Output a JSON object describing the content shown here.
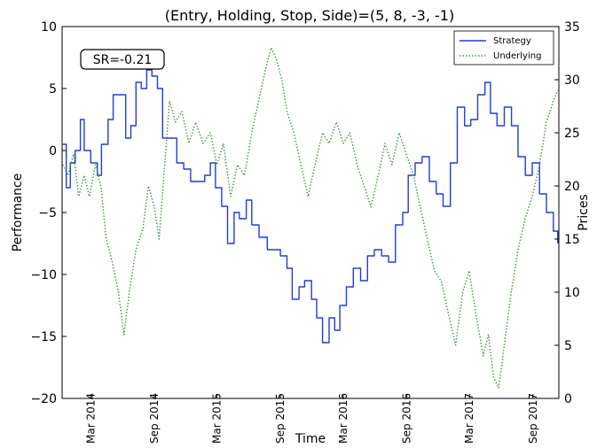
{
  "chart_data": {
    "type": "line",
    "title": "(Entry, Holding, Stop, Side)=(5, 8, -3, -1)",
    "xlabel": "Time",
    "ylabel": "Performance",
    "ylabel_right": "Prices",
    "ylim": [
      -20,
      10
    ],
    "ylim_right": [
      0,
      35
    ],
    "yticks": [
      -20,
      -15,
      -10,
      -5,
      0,
      5,
      10
    ],
    "yticks_right": [
      0,
      5,
      10,
      15,
      20,
      25,
      30,
      35
    ],
    "xlim": [
      "2013-12-08",
      "2017-11-15"
    ],
    "xticks": [
      {
        "date": "2014-03-01",
        "label": "Mar 2014"
      },
      {
        "date": "2014-09-01",
        "label": "Sep 2014"
      },
      {
        "date": "2015-03-01",
        "label": "Mar 2015"
      },
      {
        "date": "2015-09-01",
        "label": "Sep 2015"
      },
      {
        "date": "2016-03-01",
        "label": "Mar 2016"
      },
      {
        "date": "2016-09-01",
        "label": "Sep 2016"
      },
      {
        "date": "2017-03-01",
        "label": "Mar 2017"
      },
      {
        "date": "2017-09-01",
        "label": "Sep 2017"
      }
    ],
    "legend_position": "top-right",
    "annotation": "SR=-0.21",
    "series": [
      {
        "name": "Strategy",
        "axis": "left",
        "style": "solid",
        "color": "#1f3fd6",
        "points": [
          [
            "2013-12-10",
            0.5
          ],
          [
            "2013-12-20",
            -3.0
          ],
          [
            "2014-01-01",
            -1.0
          ],
          [
            "2014-01-15",
            0.0
          ],
          [
            "2014-01-30",
            2.5
          ],
          [
            "2014-02-10",
            0.0
          ],
          [
            "2014-03-01",
            -1.0
          ],
          [
            "2014-03-20",
            -2.0
          ],
          [
            "2014-04-01",
            0.5
          ],
          [
            "2014-04-20",
            2.5
          ],
          [
            "2014-05-05",
            4.5
          ],
          [
            "2014-05-25",
            4.5
          ],
          [
            "2014-06-10",
            1.0
          ],
          [
            "2014-06-25",
            2.0
          ],
          [
            "2014-07-10",
            5.5
          ],
          [
            "2014-07-25",
            5.0
          ],
          [
            "2014-08-10",
            6.5
          ],
          [
            "2014-08-25",
            6.0
          ],
          [
            "2014-09-10",
            5.0
          ],
          [
            "2014-09-25",
            1.0
          ],
          [
            "2014-10-15",
            1.0
          ],
          [
            "2014-11-05",
            -1.0
          ],
          [
            "2014-11-25",
            -1.5
          ],
          [
            "2014-12-15",
            -2.5
          ],
          [
            "2015-01-05",
            -2.5
          ],
          [
            "2015-01-25",
            -2.0
          ],
          [
            "2015-02-10",
            -1.0
          ],
          [
            "2015-02-25",
            -3.0
          ],
          [
            "2015-03-15",
            -4.5
          ],
          [
            "2015-04-01",
            -7.5
          ],
          [
            "2015-04-20",
            -5.0
          ],
          [
            "2015-05-05",
            -5.5
          ],
          [
            "2015-05-25",
            -4.0
          ],
          [
            "2015-06-10",
            -6.0
          ],
          [
            "2015-07-01",
            -7.0
          ],
          [
            "2015-07-25",
            -8.0
          ],
          [
            "2015-08-15",
            -8.0
          ],
          [
            "2015-09-01",
            -8.5
          ],
          [
            "2015-09-20",
            -9.5
          ],
          [
            "2015-10-05",
            -12.0
          ],
          [
            "2015-10-25",
            -11.0
          ],
          [
            "2015-11-10",
            -10.5
          ],
          [
            "2015-11-30",
            -12.0
          ],
          [
            "2015-12-15",
            -13.5
          ],
          [
            "2016-01-01",
            -15.5
          ],
          [
            "2016-01-20",
            -13.5
          ],
          [
            "2016-02-05",
            -14.5
          ],
          [
            "2016-02-20",
            -12.5
          ],
          [
            "2016-03-10",
            -11.0
          ],
          [
            "2016-03-30",
            -9.5
          ],
          [
            "2016-04-20",
            -10.5
          ],
          [
            "2016-05-10",
            -8.5
          ],
          [
            "2016-05-30",
            -8.0
          ],
          [
            "2016-06-20",
            -8.5
          ],
          [
            "2016-07-10",
            -9.0
          ],
          [
            "2016-07-30",
            -6.0
          ],
          [
            "2016-08-20",
            -5.0
          ],
          [
            "2016-09-05",
            -2.0
          ],
          [
            "2016-09-25",
            -1.0
          ],
          [
            "2016-10-15",
            -0.5
          ],
          [
            "2016-11-05",
            -2.5
          ],
          [
            "2016-11-25",
            -3.5
          ],
          [
            "2016-12-15",
            -4.5
          ],
          [
            "2017-01-05",
            -1.0
          ],
          [
            "2017-01-25",
            3.5
          ],
          [
            "2017-02-15",
            2.0
          ],
          [
            "2017-03-05",
            2.5
          ],
          [
            "2017-03-25",
            4.5
          ],
          [
            "2017-04-15",
            5.5
          ],
          [
            "2017-05-01",
            3.0
          ],
          [
            "2017-05-20",
            2.0
          ],
          [
            "2017-06-10",
            3.5
          ],
          [
            "2017-07-01",
            2.0
          ],
          [
            "2017-07-20",
            -0.5
          ],
          [
            "2017-08-10",
            -2.0
          ],
          [
            "2017-08-30",
            -1.0
          ],
          [
            "2017-09-20",
            -3.5
          ],
          [
            "2017-10-10",
            -5.0
          ],
          [
            "2017-10-30",
            -6.5
          ],
          [
            "2017-11-12",
            -7.5
          ]
        ]
      },
      {
        "name": "Underlying",
        "axis": "right",
        "style": "dotted",
        "color": "#3a9a3a",
        "points": [
          [
            "2013-12-10",
            22
          ],
          [
            "2013-12-25",
            21
          ],
          [
            "2014-01-10",
            23
          ],
          [
            "2014-01-25",
            19
          ],
          [
            "2014-02-10",
            21
          ],
          [
            "2014-02-25",
            19
          ],
          [
            "2014-03-15",
            22
          ],
          [
            "2014-03-30",
            20
          ],
          [
            "2014-04-15",
            15
          ],
          [
            "2014-05-01",
            13
          ],
          [
            "2014-05-20",
            10
          ],
          [
            "2014-06-05",
            6
          ],
          [
            "2014-06-25",
            11
          ],
          [
            "2014-07-10",
            14
          ],
          [
            "2014-07-30",
            16
          ],
          [
            "2014-08-15",
            20
          ],
          [
            "2014-09-01",
            18
          ],
          [
            "2014-09-15",
            15
          ],
          [
            "2014-10-01",
            22
          ],
          [
            "2014-10-15",
            28
          ],
          [
            "2014-11-01",
            26
          ],
          [
            "2014-11-20",
            27
          ],
          [
            "2014-12-10",
            24
          ],
          [
            "2014-12-30",
            26
          ],
          [
            "2015-01-20",
            24
          ],
          [
            "2015-02-10",
            25
          ],
          [
            "2015-03-01",
            22
          ],
          [
            "2015-03-20",
            24
          ],
          [
            "2015-04-10",
            19
          ],
          [
            "2015-04-30",
            22
          ],
          [
            "2015-05-20",
            21
          ],
          [
            "2015-06-10",
            25
          ],
          [
            "2015-06-30",
            28
          ],
          [
            "2015-07-20",
            31
          ],
          [
            "2015-08-05",
            33
          ],
          [
            "2015-08-20",
            32
          ],
          [
            "2015-09-05",
            30
          ],
          [
            "2015-09-20",
            27
          ],
          [
            "2015-10-10",
            25
          ],
          [
            "2015-10-30",
            22
          ],
          [
            "2015-11-20",
            19
          ],
          [
            "2015-12-10",
            22
          ],
          [
            "2016-01-01",
            25
          ],
          [
            "2016-01-20",
            24
          ],
          [
            "2016-02-10",
            26
          ],
          [
            "2016-03-01",
            24
          ],
          [
            "2016-03-20",
            25
          ],
          [
            "2016-04-10",
            22
          ],
          [
            "2016-04-30",
            20
          ],
          [
            "2016-05-20",
            18
          ],
          [
            "2016-06-10",
            21
          ],
          [
            "2016-06-30",
            24
          ],
          [
            "2016-07-20",
            22
          ],
          [
            "2016-08-10",
            25
          ],
          [
            "2016-08-30",
            23
          ],
          [
            "2016-09-20",
            21
          ],
          [
            "2016-10-10",
            18
          ],
          [
            "2016-10-30",
            15
          ],
          [
            "2016-11-20",
            12
          ],
          [
            "2016-12-10",
            11
          ],
          [
            "2016-12-30",
            8
          ],
          [
            "2017-01-20",
            5
          ],
          [
            "2017-02-10",
            10
          ],
          [
            "2017-02-28",
            12
          ],
          [
            "2017-03-20",
            8
          ],
          [
            "2017-04-10",
            4
          ],
          [
            "2017-04-25",
            6
          ],
          [
            "2017-05-10",
            2
          ],
          [
            "2017-05-25",
            1
          ],
          [
            "2017-06-10",
            5
          ],
          [
            "2017-06-30",
            10
          ],
          [
            "2017-07-20",
            14
          ],
          [
            "2017-08-10",
            17
          ],
          [
            "2017-08-30",
            19
          ],
          [
            "2017-09-20",
            22
          ],
          [
            "2017-10-10",
            26
          ],
          [
            "2017-10-30",
            28
          ],
          [
            "2017-11-12",
            29
          ]
        ]
      }
    ]
  }
}
